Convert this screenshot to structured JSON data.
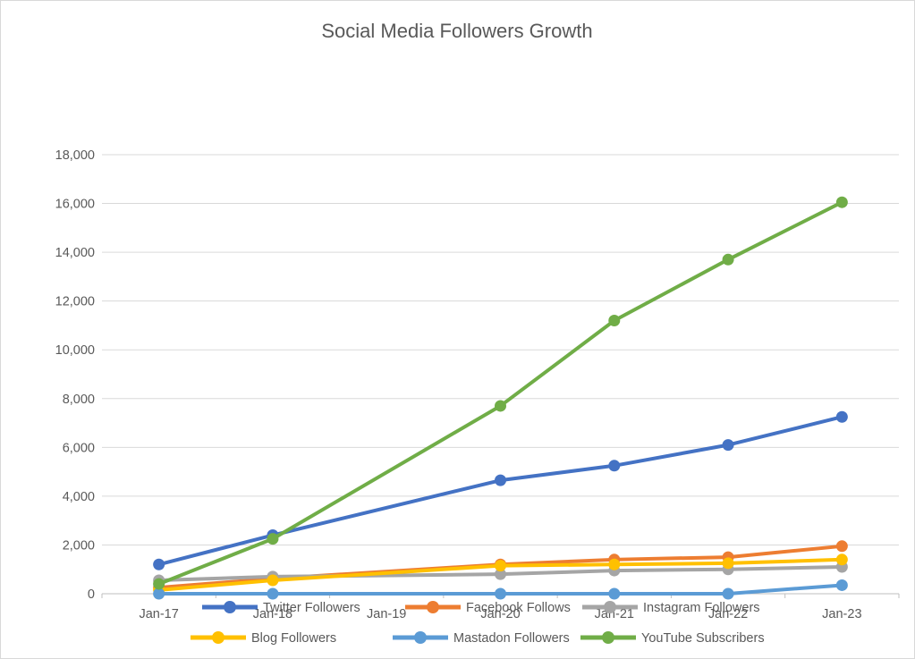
{
  "chart_data": {
    "type": "line",
    "title": "Social Media Followers Growth",
    "xlabel": "",
    "ylabel": "",
    "categories": [
      "Jan-17",
      "Jan-18",
      "Jan-19",
      "Jan-20",
      "Jan-21",
      "Jan-22",
      "Jan-23"
    ],
    "series": [
      {
        "name": "Twitter Followers",
        "color": "#4472C4",
        "values": [
          1200,
          2400,
          null,
          4650,
          5250,
          6100,
          7250
        ]
      },
      {
        "name": "Facebook Follows",
        "color": "#ED7D31",
        "values": [
          250,
          620,
          null,
          1200,
          1400,
          1500,
          1950
        ]
      },
      {
        "name": "Instagram Followers",
        "color": "#A5A5A5",
        "values": [
          550,
          700,
          null,
          800,
          950,
          1000,
          1100
        ]
      },
      {
        "name": "Blog Followers",
        "color": "#FFC000",
        "values": [
          150,
          550,
          null,
          1150,
          1200,
          1250,
          1400
        ]
      },
      {
        "name": "Mastadon Followers",
        "color": "#5B9BD5",
        "values": [
          0,
          0,
          null,
          0,
          0,
          0,
          350
        ]
      },
      {
        "name": "YouTube Subscribers",
        "color": "#70AD47",
        "values": [
          400,
          2250,
          null,
          7700,
          11200,
          13700,
          16050
        ]
      }
    ],
    "ylim": [
      0,
      18000
    ],
    "ytick_step": 2000,
    "ytick_labels": [
      "0",
      "2,000",
      "4,000",
      "6,000",
      "8,000",
      "10,000",
      "12,000",
      "14,000",
      "16,000",
      "18,000"
    ],
    "grid": true,
    "markers": true,
    "missing_marker_categories": [
      "Jan-19"
    ],
    "legend_position": "bottom",
    "legend_rows": [
      [
        "Twitter Followers",
        "Facebook Follows",
        "Instagram Followers"
      ],
      [
        "Blog Followers",
        "Mastadon Followers",
        "YouTube Subscribers"
      ]
    ]
  },
  "colors": {
    "background": "#FFFFFF",
    "title_text": "#595959",
    "axis_text": "#595959",
    "legend_text": "#595959",
    "gridline": "#D9D9D9",
    "axis_line": "#BFBFBF"
  }
}
